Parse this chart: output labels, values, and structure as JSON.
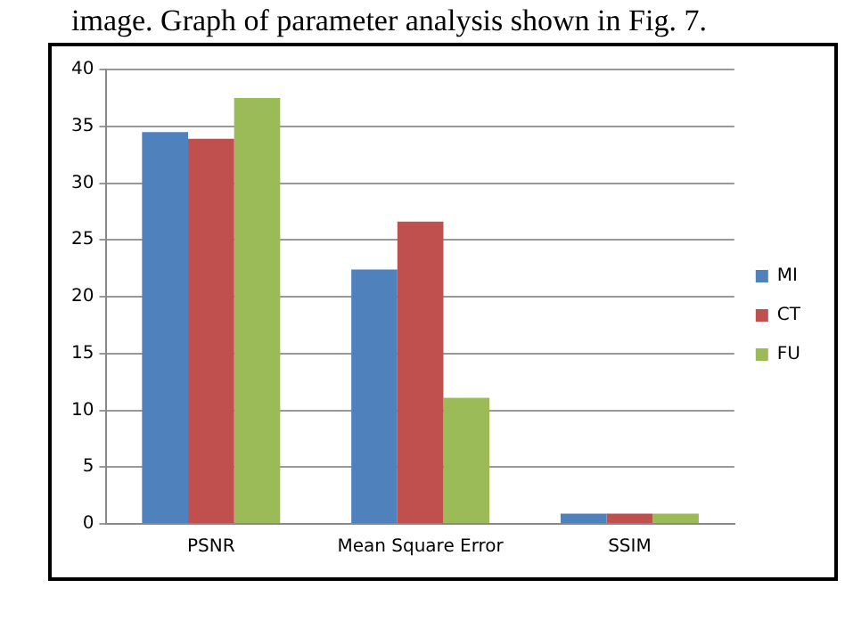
{
  "chart_data": {
    "type": "bar",
    "annotations": [
      "image. Graph of parameter analysis shown in Fig. 7."
    ],
    "categories": [
      "PSNR",
      "Mean Square Error",
      "SSIM"
    ],
    "series": [
      {
        "name": "MI",
        "color": "#4f81bd",
        "values": [
          34.5,
          22.4,
          0.9
        ]
      },
      {
        "name": "CT",
        "color": "#c0504d",
        "values": [
          33.9,
          26.6,
          0.9
        ]
      },
      {
        "name": "FU",
        "color": "#9bbb59",
        "values": [
          37.5,
          11.1,
          0.9
        ]
      }
    ],
    "ylim": [
      0,
      40
    ],
    "yticks": [
      0,
      5,
      10,
      15,
      20,
      25,
      30,
      35,
      40
    ],
    "grid": "y",
    "legend": "right"
  }
}
